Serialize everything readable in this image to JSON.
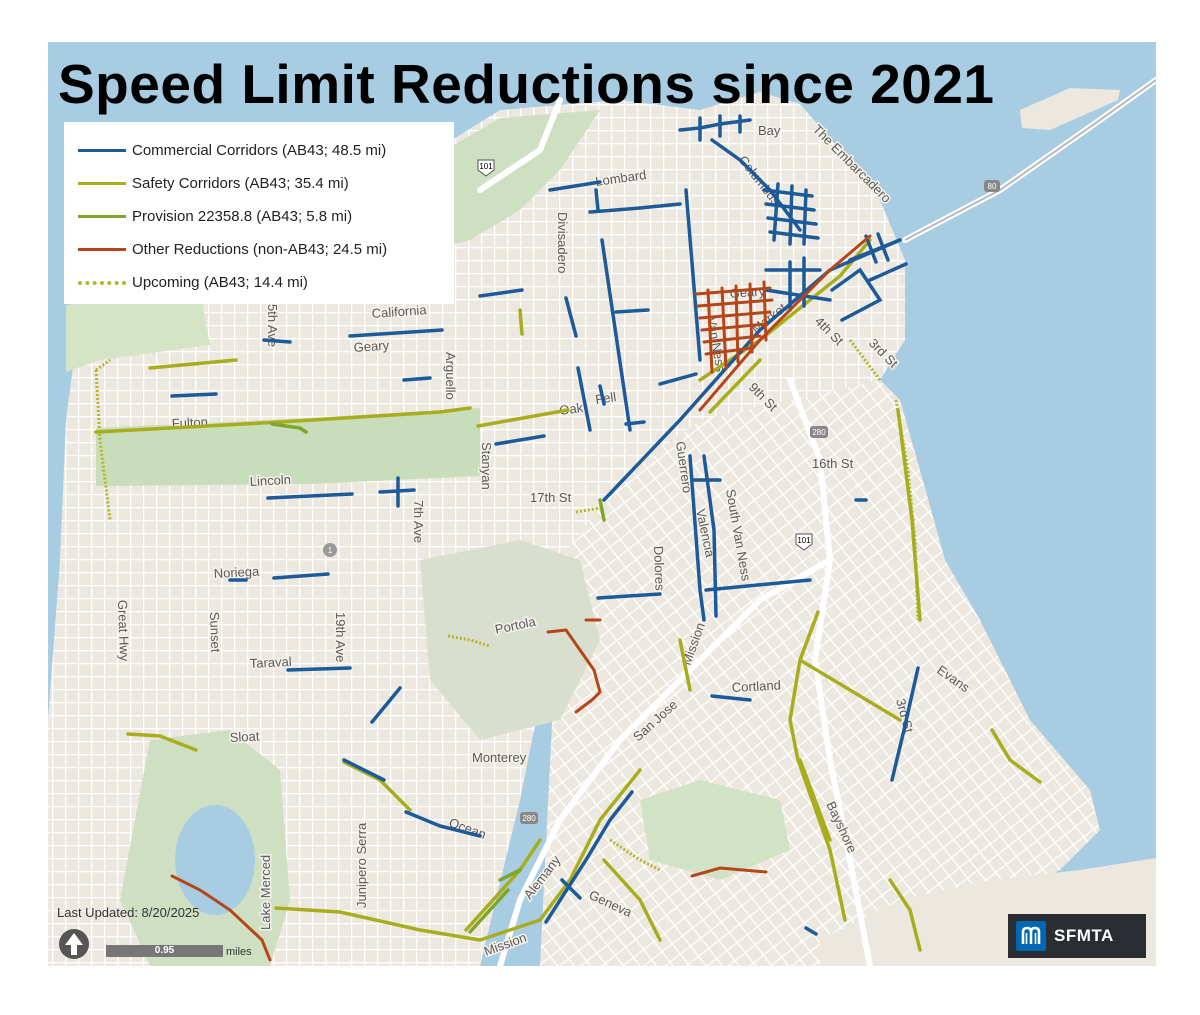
{
  "map": {
    "title": "Speed Limit Reductions since 2021",
    "legend": [
      {
        "label": "Commercial Corridors (AB43; 48.5 mi)",
        "color": "#1c5a99",
        "style": "solid"
      },
      {
        "label": "Safety Corridors (AB43; 35.4 mi)",
        "color": "#a8ad1e",
        "style": "solid"
      },
      {
        "label": "Provision 22358.8 (AB43; 5.8 mi)",
        "color": "#7fa52a",
        "style": "solid"
      },
      {
        "label": "Other Reductions (non-AB43; 24.5 mi)",
        "color": "#b5461a",
        "style": "solid"
      },
      {
        "label": "Upcoming (AB43; 14.4 mi)",
        "color": "#b5b52a",
        "style": "dotted"
      }
    ],
    "last_updated": "Last Updated: 8/20/2025",
    "scale_value": "0.95",
    "scale_unit": "miles",
    "logo_text": "SFMTA",
    "streets": {
      "bay": "Bay",
      "lombard": "Lombard",
      "columbus": "Columbus",
      "embarcadero": "The Embarcadero",
      "divisadero": "Divisadero",
      "california": "California",
      "geary_west": "Geary",
      "arguello": "Arguello",
      "fifth_ave": "5th Ave",
      "geary_east": "Geary",
      "van_ness": "Van Ness",
      "market": "Market",
      "fourth_st": "4th St",
      "third_st_north": "3rd St",
      "fulton": "Fulton",
      "oak": "Oak",
      "fell": "Fell",
      "ninth_st": "9th St",
      "stanyan": "Stanyan",
      "lincoln": "Lincoln",
      "seventh_ave": "7th Ave",
      "seventeenth_st": "17th St",
      "guerrero": "Guerrero",
      "valencia": "Valencia",
      "south_van_ness": "South Van Ness",
      "sixteenth_st": "16th St",
      "noriega": "Noriega",
      "dolores": "Dolores",
      "great_hwy": "Great Hwy",
      "sunset": "Sunset",
      "nineteenth_ave": "19th Ave",
      "taraval": "Taraval",
      "portola": "Portola",
      "mission_north": "Mission",
      "cortland": "Cortland",
      "evans": "Evans",
      "sloat": "Sloat",
      "san_jose": "San Jose",
      "monterey": "Monterey",
      "third_st_south": "3rd St",
      "ocean": "Ocean",
      "bayshore": "Bayshore",
      "junipero_serra": "Junipero Serra",
      "lake_merced": "Lake Merced",
      "alemany": "Alemany",
      "geneva": "Geneva",
      "mission_south": "Mission"
    },
    "shields": {
      "us101_north": "101",
      "i80": "80",
      "i280_north": "280",
      "us101_south": "101",
      "ca1": "1",
      "i280_south": "280"
    }
  }
}
